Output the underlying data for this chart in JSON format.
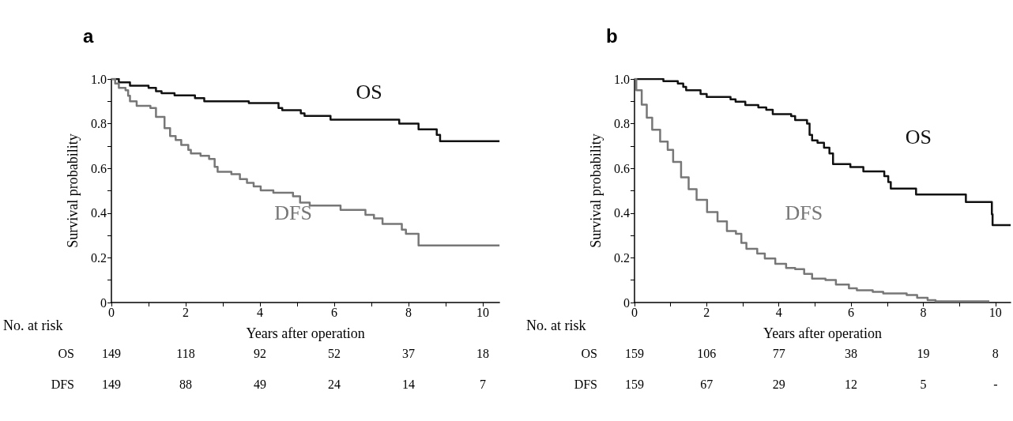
{
  "chart_data": [
    {
      "type": "step",
      "title": "a",
      "xlabel": "Years after operation",
      "ylabel": "Survival probability",
      "xlim": [
        0,
        10.45
      ],
      "xticks": [
        0,
        2,
        4,
        6,
        8,
        10
      ],
      "ylim": [
        0,
        1
      ],
      "yticks": [
        0,
        0.2,
        0.4,
        0.6,
        {
          "value": 1,
          "label": "1.0"
        },
        0.8
      ],
      "grid": false,
      "legend": false,
      "marker": "none",
      "line_style": "solid",
      "series": [
        {
          "name": "OS",
          "color": "#111111",
          "x": [
            0,
            0.2,
            0.5,
            1.0,
            1.2,
            1.35,
            1.7,
            2.25,
            2.5,
            3.7,
            4.5,
            4.6,
            5.1,
            5.2,
            5.9,
            7.75,
            8.27,
            8.76,
            8.85,
            10.45
          ],
          "values": [
            1,
            0.985,
            0.97,
            0.96,
            0.945,
            0.936,
            0.927,
            0.914,
            0.9,
            0.892,
            0.87,
            0.86,
            0.846,
            0.835,
            0.818,
            0.8,
            0.775,
            0.75,
            0.722,
            0.722
          ]
        },
        {
          "name": "DFS",
          "color": "#777777",
          "x": [
            0,
            0.1,
            0.2,
            0.38,
            0.45,
            0.5,
            0.68,
            1.05,
            1.2,
            1.43,
            1.58,
            1.73,
            1.88,
            2.07,
            2.14,
            2.4,
            2.63,
            2.78,
            2.86,
            3.23,
            3.46,
            3.65,
            3.83,
            4.02,
            4.36,
            4.89,
            5.08,
            5.34,
            6.17,
            6.84,
            7.07,
            7.3,
            7.82,
            7.93,
            8.27,
            10.45
          ],
          "values": [
            1,
            0.98,
            0.96,
            0.95,
            0.925,
            0.9,
            0.88,
            0.87,
            0.83,
            0.78,
            0.745,
            0.727,
            0.705,
            0.683,
            0.667,
            0.656,
            0.642,
            0.607,
            0.585,
            0.574,
            0.552,
            0.535,
            0.519,
            0.502,
            0.491,
            0.475,
            0.447,
            0.434,
            0.414,
            0.392,
            0.376,
            0.352,
            0.326,
            0.307,
            0.255,
            0.255
          ]
        }
      ],
      "annotations": [
        "No. at risk",
        "OS",
        "149",
        "118",
        "92",
        "52",
        "37",
        "18",
        "DFS",
        "149",
        "88",
        "49",
        "24",
        "14",
        "7"
      ]
    },
    {
      "type": "step",
      "title": "b",
      "xlabel": "Years after operation",
      "ylabel": "Survival probability",
      "xlim": [
        0,
        10.42
      ],
      "xticks": [
        0,
        2,
        4,
        6,
        8,
        10
      ],
      "ylim": [
        0,
        1
      ],
      "yticks": [
        0,
        0.2,
        0.4,
        0.6,
        0.8,
        {
          "value": 1,
          "label": "1.0"
        }
      ],
      "grid": false,
      "legend": false,
      "marker": "none",
      "line_style": "solid",
      "series": [
        {
          "name": "OS",
          "color": "#111111",
          "x": [
            0,
            0.8,
            1.2,
            1.35,
            1.43,
            1.83,
            2.0,
            2.66,
            2.8,
            3.07,
            3.43,
            3.65,
            3.83,
            4.34,
            4.45,
            4.78,
            4.85,
            4.92,
            5.07,
            5.25,
            5.4,
            5.5,
            5.98,
            6.34,
            6.92,
            7.03,
            7.1,
            7.8,
            9.18,
            9.9,
            9.92,
            10.42
          ],
          "values": [
            1,
            0.99,
            0.98,
            0.965,
            0.95,
            0.933,
            0.92,
            0.909,
            0.898,
            0.883,
            0.873,
            0.862,
            0.843,
            0.834,
            0.816,
            0.8,
            0.75,
            0.725,
            0.715,
            0.693,
            0.667,
            0.619,
            0.606,
            0.587,
            0.565,
            0.539,
            0.51,
            0.483,
            0.45,
            0.395,
            0.346,
            0.346
          ]
        },
        {
          "name": "DFS",
          "color": "#777777",
          "x": [
            0,
            0.05,
            0.2,
            0.34,
            0.49,
            0.71,
            0.92,
            1.07,
            1.29,
            1.5,
            1.72,
            2.01,
            2.3,
            2.56,
            2.81,
            2.96,
            3.1,
            3.4,
            3.61,
            3.9,
            4.2,
            4.45,
            4.7,
            4.92,
            5.29,
            5.58,
            5.94,
            6.16,
            6.6,
            6.89,
            7.54,
            7.83,
            8.12,
            8.34,
            9.83
          ],
          "values": [
            1,
            0.95,
            0.885,
            0.827,
            0.773,
            0.72,
            0.683,
            0.629,
            0.56,
            0.507,
            0.459,
            0.405,
            0.363,
            0.32,
            0.307,
            0.267,
            0.24,
            0.219,
            0.197,
            0.173,
            0.155,
            0.149,
            0.128,
            0.107,
            0.101,
            0.08,
            0.064,
            0.055,
            0.048,
            0.041,
            0.034,
            0.021,
            0.011,
            0.005,
            0.005
          ]
        }
      ],
      "annotations": [
        "No. at risk",
        "OS",
        "159",
        "106",
        "77",
        "38",
        "19",
        "8",
        "DFS",
        "159",
        "67",
        "29",
        "12",
        "5",
        "-"
      ]
    }
  ]
}
